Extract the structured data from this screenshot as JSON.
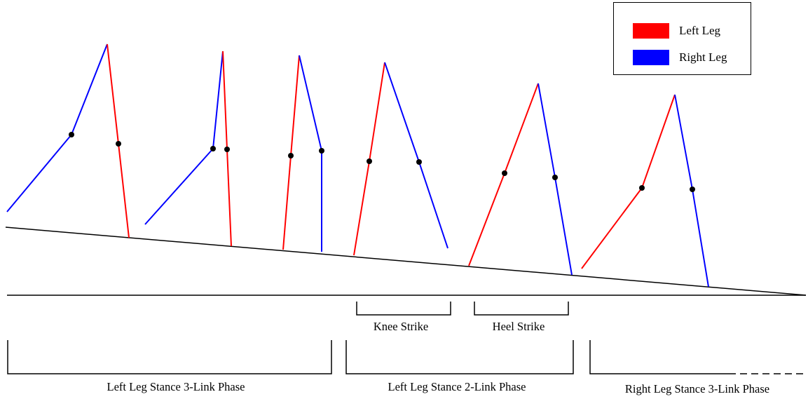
{
  "colors": {
    "left_leg": "#ff0000",
    "right_leg": "#0000ff",
    "ground": "#000000",
    "joint": "#000000"
  },
  "legend": {
    "left_leg_label": "Left Leg",
    "right_leg_label": "Right Leg"
  },
  "events": {
    "knee_strike": "Knee Strike",
    "heel_strike": "Heel Strike"
  },
  "phases": {
    "left_3link": "Left Leg Stance 3-Link Phase",
    "left_2link": "Left Leg Stance 2-Link Phase",
    "right_3link": "Right Leg Stance 3-Link Phase"
  }
}
